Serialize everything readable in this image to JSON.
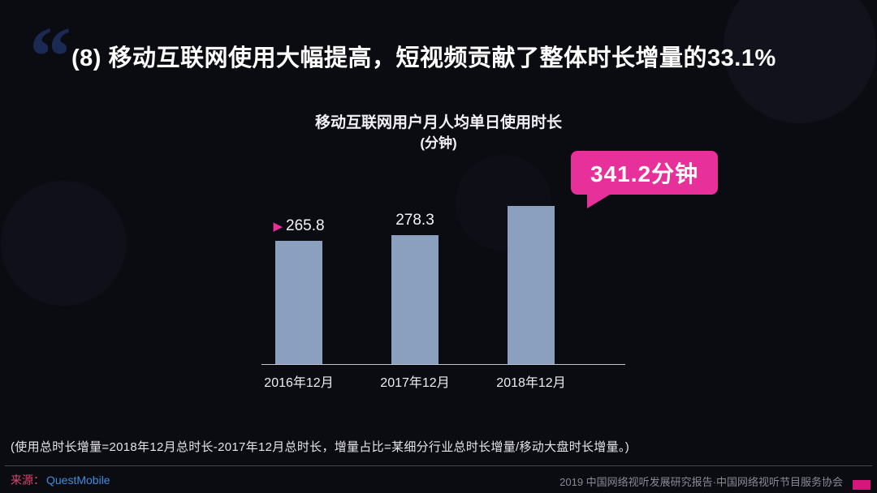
{
  "header": {
    "quote_glyph": "“",
    "title": "(8) 移动互联网使用大幅提高，短视频贡献了整体时长增量的33.1%"
  },
  "chart_data": {
    "type": "bar",
    "title": "移动互联网用户月人均单日使用时长",
    "subtitle": "(分钟)",
    "categories": [
      "2016年12月",
      "2017年12月",
      "2018年12月"
    ],
    "values": [
      265.8,
      278.3,
      341.2
    ],
    "value_labels": [
      "265.8",
      "278.3",
      "341.2"
    ],
    "callout": "341.2分钟",
    "ylim": [
      0,
      360
    ],
    "grid": false,
    "legend": "none",
    "bar_color": "#8b9fbe",
    "accent_color": "#e8309a",
    "marker_glyph": "▶"
  },
  "footnote": "(使用总时长增量=2018年12月总时长-2017年12月总时长，增量占比=某细分行业总时长增量/移动大盘时长增量。)",
  "footer": {
    "source_label": "来源：",
    "source_value": "QuestMobile",
    "credit": "2019 中国网络视听发展研究报告·中国网络视听节目服务协会"
  }
}
